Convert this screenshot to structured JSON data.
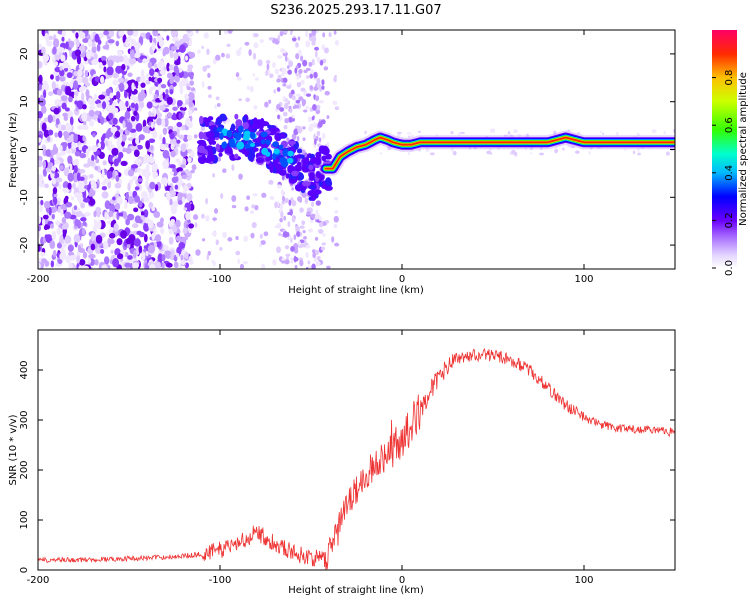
{
  "title": "S236.2025.293.17.11.G07",
  "chart_data": [
    {
      "type": "heatmap",
      "xlabel": "Height of straight line (km)",
      "ylabel": "Frequency (Hz)",
      "xlim": [
        -200,
        150
      ],
      "ylim": [
        -25,
        25
      ],
      "xticks": [
        -200,
        -100,
        0,
        100
      ],
      "yticks": [
        -20,
        -10,
        0,
        10,
        20
      ],
      "colorbar": {
        "label": "Normalized spectral amplitude",
        "range": [
          0,
          1
        ],
        "ticks": [
          0.0,
          0.2,
          0.4,
          0.6,
          0.8
        ]
      },
      "ridge": {
        "x": [
          -110,
          -95,
          -80,
          -70,
          -60,
          -50,
          -42,
          -38,
          -34,
          -30,
          -25,
          -20,
          -15,
          -12,
          -8,
          -5,
          0,
          5,
          10,
          20,
          40,
          60,
          80,
          85,
          90,
          95,
          100,
          120,
          150
        ],
        "y": [
          2,
          2.5,
          2.5,
          0,
          -3,
          -6,
          -4,
          -4,
          -1.5,
          -0.5,
          0.5,
          1.0,
          2.0,
          2.5,
          2.0,
          1.5,
          1.0,
          1.0,
          1.5,
          1.5,
          1.5,
          1.5,
          1.5,
          2.0,
          2.5,
          2.0,
          1.5,
          1.5,
          1.5
        ]
      }
    },
    {
      "type": "line",
      "xlabel": "Height of straight line (km)",
      "ylabel": "SNR (10 * v/v)",
      "xlim": [
        -200,
        150
      ],
      "ylim": [
        0,
        480
      ],
      "xticks": [
        -200,
        -100,
        0,
        100
      ],
      "yticks": [
        0,
        100,
        200,
        300,
        400
      ],
      "series": [
        {
          "name": "SNR",
          "color": "#ee3333",
          "x": [
            -200,
            -180,
            -160,
            -140,
            -120,
            -110,
            -100,
            -90,
            -80,
            -70,
            -60,
            -50,
            -42,
            -38,
            -35,
            -30,
            -25,
            -20,
            -15,
            -10,
            -5,
            0,
            5,
            10,
            15,
            20,
            25,
            30,
            40,
            50,
            60,
            70,
            80,
            90,
            100,
            110,
            120,
            130,
            140,
            150
          ],
          "y": [
            20,
            20,
            22,
            24,
            28,
            32,
            40,
            55,
            75,
            55,
            35,
            25,
            20,
            60,
            90,
            130,
            160,
            190,
            210,
            230,
            245,
            260,
            290,
            320,
            355,
            385,
            405,
            420,
            430,
            430,
            420,
            400,
            365,
            330,
            305,
            290,
            283,
            280,
            278,
            276
          ]
        }
      ]
    }
  ]
}
